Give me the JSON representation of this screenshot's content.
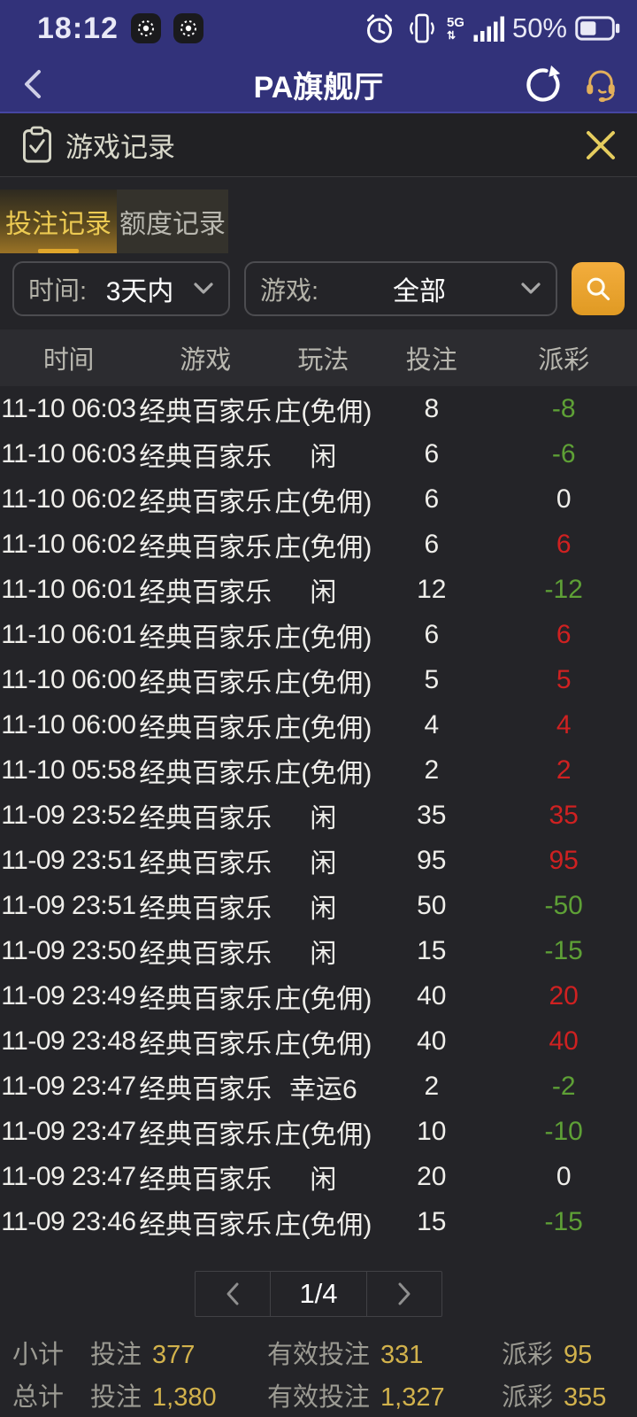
{
  "status_bar": {
    "time": "18:12",
    "network": "5G",
    "battery_percent": "50%"
  },
  "navbar": {
    "title": "PA旗舰厅"
  },
  "modal": {
    "title": "游戏记录"
  },
  "tabs": {
    "bet_records": "投注记录",
    "quota_records": "额度记录"
  },
  "filters": {
    "time_label": "时间:",
    "time_value": "3天内",
    "game_label": "游戏:",
    "game_value": "全部"
  },
  "table": {
    "headers": [
      "时间",
      "游戏",
      "玩法",
      "投注",
      "派彩"
    ],
    "rows": [
      {
        "time": "11-10 06:03",
        "game": "经典百家乐",
        "play": "庄(免佣)",
        "bet": "8",
        "payout": "-8",
        "tone": "green"
      },
      {
        "time": "11-10 06:03",
        "game": "经典百家乐",
        "play": "闲",
        "bet": "6",
        "payout": "-6",
        "tone": "green"
      },
      {
        "time": "11-10 06:02",
        "game": "经典百家乐",
        "play": "庄(免佣)",
        "bet": "6",
        "payout": "0",
        "tone": "neutral"
      },
      {
        "time": "11-10 06:02",
        "game": "经典百家乐",
        "play": "庄(免佣)",
        "bet": "6",
        "payout": "6",
        "tone": "red"
      },
      {
        "time": "11-10 06:01",
        "game": "经典百家乐",
        "play": "闲",
        "bet": "12",
        "payout": "-12",
        "tone": "green"
      },
      {
        "time": "11-10 06:01",
        "game": "经典百家乐",
        "play": "庄(免佣)",
        "bet": "6",
        "payout": "6",
        "tone": "red"
      },
      {
        "time": "11-10 06:00",
        "game": "经典百家乐",
        "play": "庄(免佣)",
        "bet": "5",
        "payout": "5",
        "tone": "red"
      },
      {
        "time": "11-10 06:00",
        "game": "经典百家乐",
        "play": "庄(免佣)",
        "bet": "4",
        "payout": "4",
        "tone": "red"
      },
      {
        "time": "11-10 05:58",
        "game": "经典百家乐",
        "play": "庄(免佣)",
        "bet": "2",
        "payout": "2",
        "tone": "red"
      },
      {
        "time": "11-09 23:52",
        "game": "经典百家乐",
        "play": "闲",
        "bet": "35",
        "payout": "35",
        "tone": "red"
      },
      {
        "time": "11-09 23:51",
        "game": "经典百家乐",
        "play": "闲",
        "bet": "95",
        "payout": "95",
        "tone": "red"
      },
      {
        "time": "11-09 23:51",
        "game": "经典百家乐",
        "play": "闲",
        "bet": "50",
        "payout": "-50",
        "tone": "green"
      },
      {
        "time": "11-09 23:50",
        "game": "经典百家乐",
        "play": "闲",
        "bet": "15",
        "payout": "-15",
        "tone": "green"
      },
      {
        "time": "11-09 23:49",
        "game": "经典百家乐",
        "play": "庄(免佣)",
        "bet": "40",
        "payout": "20",
        "tone": "red"
      },
      {
        "time": "11-09 23:48",
        "game": "经典百家乐",
        "play": "庄(免佣)",
        "bet": "40",
        "payout": "40",
        "tone": "red"
      },
      {
        "time": "11-09 23:47",
        "game": "经典百家乐",
        "play": "幸运6",
        "bet": "2",
        "payout": "-2",
        "tone": "green"
      },
      {
        "time": "11-09 23:47",
        "game": "经典百家乐",
        "play": "庄(免佣)",
        "bet": "10",
        "payout": "-10",
        "tone": "green"
      },
      {
        "time": "11-09 23:47",
        "game": "经典百家乐",
        "play": "闲",
        "bet": "20",
        "payout": "0",
        "tone": "neutral"
      },
      {
        "time": "11-09 23:46",
        "game": "经典百家乐",
        "play": "庄(免佣)",
        "bet": "15",
        "payout": "-15",
        "tone": "green"
      }
    ]
  },
  "pagination": {
    "page_indicator": "1/4"
  },
  "summary": {
    "subtotal": {
      "label": "小计",
      "bet_label": "投注",
      "bet_value": "377",
      "valid_label": "有效投注",
      "valid_value": "331",
      "payout_label": "派彩",
      "payout_value": "95"
    },
    "total": {
      "label": "总计",
      "bet_label": "投注",
      "bet_value": "1,380",
      "valid_label": "有效投注",
      "valid_value": "1,327",
      "payout_label": "派彩",
      "payout_value": "355"
    }
  },
  "colors": {
    "header_navy": "#32327a",
    "panel_bg": "#242428",
    "tab_active_text": "#ecca52",
    "tab_underline": "#e0a62b",
    "search_button_orange": "#eda32f",
    "payout_positive_red": "#cf2121",
    "payout_negative_green": "#5ea036",
    "summary_value_gold": "#d2b24c",
    "close_icon_gold": "#e5cd5e",
    "headset_icon_gold": "#e2af5b"
  }
}
